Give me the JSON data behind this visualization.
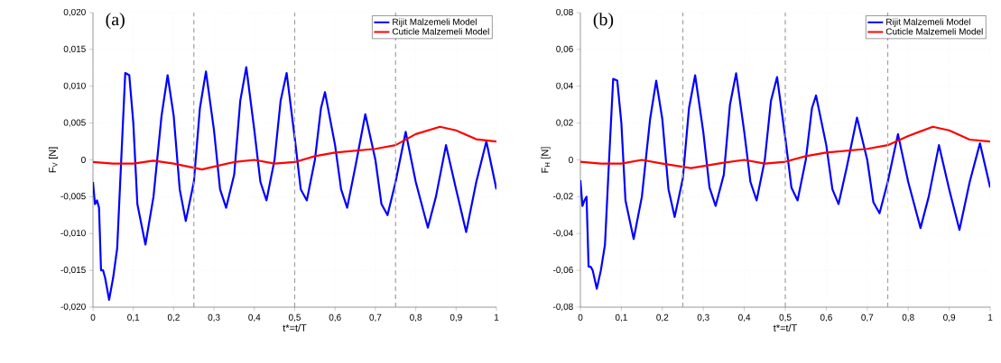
{
  "chart_data": [
    {
      "type": "line",
      "xlabel": "t*=t/T",
      "ylabel": "F$_{V}$ [N]",
      "annotations": [
        "(a)"
      ],
      "xlim": [
        0,
        1
      ],
      "ylim": [
        -0.02,
        0.02
      ],
      "xticks": [
        0,
        {
          "value": 0.1,
          "label": "0,1"
        },
        {
          "value": 0.2,
          "label": "0,2"
        },
        {
          "value": 0.3,
          "label": "0,3"
        },
        {
          "value": 0.4,
          "label": "0,4"
        },
        {
          "value": 0.5,
          "label": "0,5"
        },
        {
          "value": 0.6,
          "label": "0,6"
        },
        {
          "value": 0.7,
          "label": "0,7"
        },
        {
          "value": 0.8,
          "label": "0,8"
        },
        {
          "value": 0.9,
          "label": "0,9"
        },
        1
      ],
      "yticks": [
        {
          "value": -0.02,
          "label": "-0,020"
        },
        {
          "value": -0.015,
          "label": "-0,015"
        },
        {
          "value": -0.01,
          "label": "-0,010"
        },
        {
          "value": -0.005,
          "label": "-0,005"
        },
        0,
        {
          "value": 0.005,
          "label": "0,005"
        },
        {
          "value": 0.01,
          "label": "0,010"
        },
        {
          "value": 0.015,
          "label": "0,015"
        },
        {
          "value": 0.02,
          "label": "0,020"
        }
      ],
      "grid": true,
      "legend": "top right",
      "line_style": "solid",
      "ref_lines": [
        {
          "axis": "x",
          "value": 0.25,
          "color": "#a0a0a0",
          "line_style": "dashed"
        },
        {
          "axis": "x",
          "value": 0.5,
          "color": "#a0a0a0",
          "line_style": "dashed"
        },
        {
          "axis": "x",
          "value": 0.75,
          "color": "#a0a0a0",
          "line_style": "dashed"
        }
      ],
      "series": [
        {
          "name": "Rijit Malzemeli Model",
          "color": "#0000ff",
          "x": [
            0,
            0.005,
            0.01,
            0.015,
            0.02,
            0.025,
            0.03,
            0.04,
            0.05,
            0.06,
            0.07,
            0.08,
            0.09,
            0.1,
            0.11,
            0.13,
            0.15,
            0.17,
            0.185,
            0.2,
            0.215,
            0.23,
            0.25,
            0.265,
            0.28,
            0.3,
            0.315,
            0.33,
            0.35,
            0.365,
            0.38,
            0.4,
            0.415,
            0.43,
            0.45,
            0.465,
            0.48,
            0.5,
            0.515,
            0.53,
            0.55,
            0.565,
            0.575,
            0.6,
            0.615,
            0.63,
            0.65,
            0.675,
            0.7,
            0.715,
            0.73,
            0.75,
            0.775,
            0.8,
            0.83,
            0.85,
            0.875,
            0.9,
            0.925,
            0.95,
            0.975,
            1.0
          ],
          "values": [
            -0.003,
            -0.006,
            -0.0055,
            -0.0065,
            -0.015,
            -0.015,
            -0.016,
            -0.019,
            -0.016,
            -0.012,
            0.0,
            0.0118,
            0.0115,
            0.005,
            -0.006,
            -0.0115,
            -0.005,
            0.006,
            0.0115,
            0.006,
            -0.004,
            -0.0083,
            -0.003,
            0.007,
            0.012,
            0.004,
            -0.004,
            -0.0065,
            -0.002,
            0.008,
            0.0126,
            0.004,
            -0.003,
            -0.0055,
            0.0,
            0.008,
            0.0118,
            0.003,
            -0.004,
            -0.0055,
            0.0,
            0.007,
            0.0092,
            0.002,
            -0.004,
            -0.0065,
            -0.001,
            0.0062,
            0.0,
            -0.006,
            -0.0075,
            -0.003,
            0.0038,
            -0.003,
            -0.0092,
            -0.005,
            0.002,
            -0.004,
            -0.0098,
            -0.003,
            0.0025,
            -0.004
          ]
        },
        {
          "name": "Cuticle Malzemeli Model",
          "color": "#ff0000",
          "x": [
            0,
            0.05,
            0.1,
            0.15,
            0.2,
            0.27,
            0.35,
            0.4,
            0.45,
            0.5,
            0.55,
            0.6,
            0.7,
            0.75,
            0.8,
            0.86,
            0.9,
            0.95,
            1.0
          ],
          "values": [
            -0.0003,
            -0.0005,
            -0.0005,
            -0.0001,
            -0.0005,
            -0.0013,
            -0.0003,
            0.0,
            -0.0005,
            -0.0003,
            0.0005,
            0.001,
            0.0015,
            0.002,
            0.0035,
            0.0045,
            0.004,
            0.0028,
            0.0025
          ]
        }
      ]
    },
    {
      "type": "line",
      "xlabel": "t*=t/T",
      "ylabel": "F$_{H}$ [N]",
      "annotations": [
        "(b)"
      ],
      "xlim": [
        0,
        1
      ],
      "ylim": [
        -0.08,
        0.08
      ],
      "xticks": [
        0,
        {
          "value": 0.1,
          "label": "0,1"
        },
        {
          "value": 0.2,
          "label": "0,2"
        },
        {
          "value": 0.3,
          "label": "0,3"
        },
        {
          "value": 0.4,
          "label": "0,4"
        },
        {
          "value": 0.5,
          "label": "0,5"
        },
        {
          "value": 0.6,
          "label": "0,6"
        },
        {
          "value": 0.7,
          "label": "0,7"
        },
        {
          "value": 0.8,
          "label": "0,8"
        },
        {
          "value": 0.9,
          "label": "0,9"
        },
        1
      ],
      "yticks": [
        {
          "value": -0.08,
          "label": "-0,08"
        },
        {
          "value": -0.06,
          "label": "-0,06"
        },
        {
          "value": -0.04,
          "label": "-0,04"
        },
        {
          "value": -0.02,
          "label": "-0,02"
        },
        0,
        {
          "value": 0.02,
          "label": "0,02"
        },
        {
          "value": 0.04,
          "label": "0,04"
        },
        {
          "value": 0.06,
          "label": "0,06"
        },
        {
          "value": 0.08,
          "label": "0,08"
        }
      ],
      "grid": true,
      "legend": "top right",
      "line_style": "solid",
      "ref_lines": [
        {
          "axis": "x",
          "value": 0.25,
          "color": "#a0a0a0",
          "line_style": "dashed"
        },
        {
          "axis": "x",
          "value": 0.5,
          "color": "#a0a0a0",
          "line_style": "dashed"
        },
        {
          "axis": "x",
          "value": 0.75,
          "color": "#a0a0a0",
          "line_style": "dashed"
        }
      ],
      "series": [
        {
          "name": "Rijit Malzemeli Model",
          "color": "#0000ff",
          "x": [
            0,
            0.005,
            0.01,
            0.015,
            0.02,
            0.025,
            0.03,
            0.04,
            0.05,
            0.06,
            0.07,
            0.08,
            0.09,
            0.1,
            0.11,
            0.13,
            0.15,
            0.17,
            0.185,
            0.2,
            0.215,
            0.23,
            0.25,
            0.265,
            0.28,
            0.3,
            0.315,
            0.33,
            0.35,
            0.365,
            0.38,
            0.4,
            0.415,
            0.43,
            0.45,
            0.465,
            0.48,
            0.5,
            0.515,
            0.53,
            0.55,
            0.565,
            0.575,
            0.6,
            0.615,
            0.63,
            0.65,
            0.675,
            0.7,
            0.715,
            0.73,
            0.75,
            0.775,
            0.8,
            0.83,
            0.85,
            0.875,
            0.9,
            0.925,
            0.95,
            0.975,
            1.0
          ],
          "values": [
            -0.011,
            -0.025,
            -0.022,
            -0.02,
            -0.058,
            -0.058,
            -0.06,
            -0.07,
            -0.06,
            -0.046,
            0.0,
            0.044,
            0.043,
            0.02,
            -0.022,
            -0.043,
            -0.02,
            0.022,
            0.043,
            0.022,
            -0.016,
            -0.031,
            -0.01,
            0.028,
            0.046,
            0.015,
            -0.015,
            -0.025,
            -0.008,
            0.03,
            0.047,
            0.015,
            -0.012,
            -0.022,
            0.0,
            0.032,
            0.045,
            0.012,
            -0.015,
            -0.022,
            0.0,
            0.028,
            0.035,
            0.008,
            -0.016,
            -0.024,
            -0.004,
            0.023,
            0.0,
            -0.023,
            -0.029,
            -0.012,
            0.014,
            -0.012,
            -0.037,
            -0.02,
            0.008,
            -0.016,
            -0.038,
            -0.012,
            0.009,
            -0.015
          ]
        },
        {
          "name": "Cuticle Malzemeli Model",
          "color": "#ff0000",
          "x": [
            0,
            0.05,
            0.1,
            0.15,
            0.2,
            0.27,
            0.35,
            0.4,
            0.45,
            0.5,
            0.55,
            0.6,
            0.7,
            0.75,
            0.8,
            0.86,
            0.9,
            0.95,
            1.0
          ],
          "values": [
            -0.001,
            -0.002,
            -0.002,
            0.0,
            -0.002,
            -0.0045,
            -0.0015,
            0.0,
            -0.002,
            -0.001,
            0.002,
            0.004,
            0.006,
            0.008,
            0.013,
            0.018,
            0.016,
            0.011,
            0.01
          ]
        }
      ]
    }
  ]
}
